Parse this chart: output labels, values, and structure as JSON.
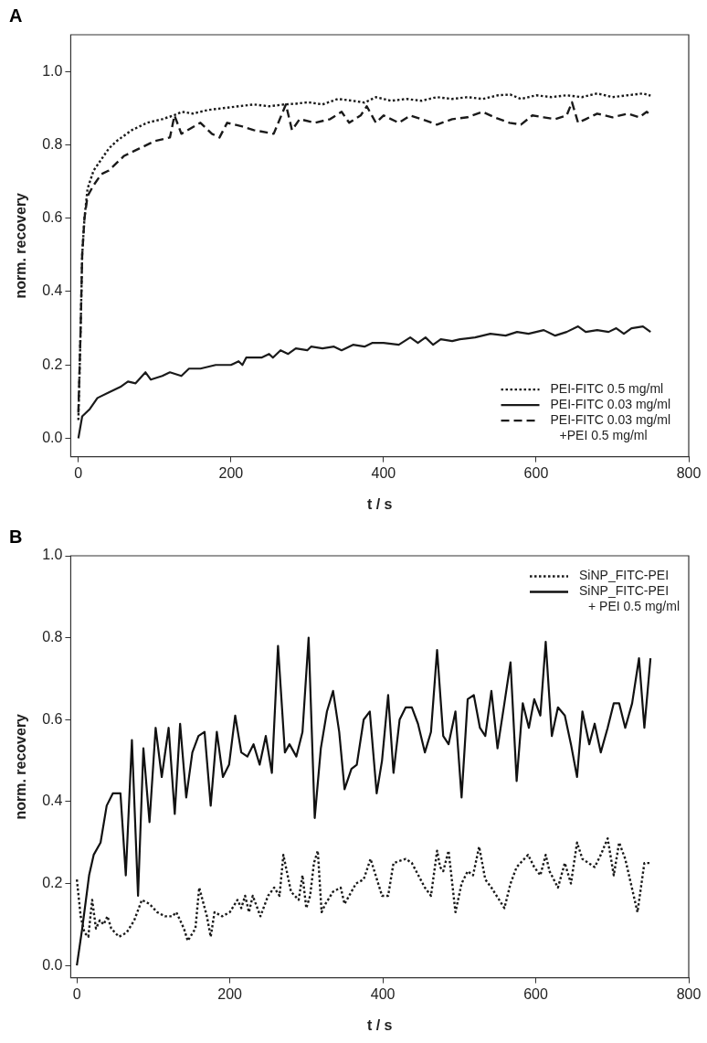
{
  "chart_data": [
    {
      "type": "line",
      "title": "A",
      "xlabel": "t / s",
      "ylabel": "norm. recovery",
      "xlim": [
        -10,
        800
      ],
      "xticks": [
        0,
        200,
        400,
        600,
        800
      ],
      "ylim": [
        -0.05,
        1.1
      ],
      "yticks": [
        {
          "value": 0,
          "label": "0.0"
        },
        {
          "value": 0.2,
          "label": "0.2"
        },
        {
          "value": 0.4,
          "label": "0.4"
        },
        {
          "value": 0.6,
          "label": "0.6"
        },
        {
          "value": 0.8,
          "label": "0.8"
        },
        {
          "value": 1,
          "label": "1.0"
        }
      ],
      "grid": false,
      "legend": "bottom right",
      "marker": "none",
      "series": [
        {
          "name": "PEI-FITC 0.5 mg/ml",
          "color": "#1a1a1a",
          "line_style": "dotted",
          "x": [
            0,
            3,
            5,
            8,
            12,
            20,
            30,
            40,
            50,
            70,
            90,
            110,
            125,
            136,
            150,
            170,
            190,
            210,
            230,
            250,
            270,
            285,
            301,
            320,
            340,
            360,
            375,
            390,
            410,
            430,
            450,
            470,
            490,
            510,
            530,
            550,
            566,
            580,
            600,
            620,
            640,
            660,
            680,
            700,
            720,
            740,
            750
          ],
          "values": [
            0.05,
            0.3,
            0.5,
            0.6,
            0.68,
            0.73,
            0.76,
            0.79,
            0.81,
            0.84,
            0.86,
            0.87,
            0.88,
            0.89,
            0.885,
            0.895,
            0.9,
            0.905,
            0.91,
            0.905,
            0.91,
            0.912,
            0.916,
            0.91,
            0.925,
            0.92,
            0.915,
            0.93,
            0.92,
            0.925,
            0.92,
            0.93,
            0.925,
            0.93,
            0.925,
            0.935,
            0.937,
            0.925,
            0.935,
            0.93,
            0.935,
            0.93,
            0.94,
            0.93,
            0.935,
            0.94,
            0.934
          ]
        },
        {
          "name": "PEI-FITC 0.03 mg/ml",
          "color": "#1a1a1a",
          "line_style": "solid",
          "x": [
            0,
            5,
            10,
            15,
            25,
            40,
            55,
            65,
            75,
            88,
            95,
            110,
            120,
            135,
            145,
            160,
            180,
            200,
            210,
            215,
            220,
            240,
            250,
            255,
            265,
            275,
            285,
            300,
            305,
            320,
            335,
            345,
            360,
            375,
            385,
            400,
            420,
            435,
            445,
            455,
            465,
            475,
            490,
            500,
            520,
            540,
            560,
            575,
            590,
            610,
            625,
            640,
            655,
            665,
            680,
            695,
            705,
            715,
            725,
            740,
            750
          ],
          "values": [
            0.0,
            0.06,
            0.07,
            0.08,
            0.11,
            0.125,
            0.14,
            0.155,
            0.15,
            0.18,
            0.16,
            0.17,
            0.18,
            0.17,
            0.19,
            0.19,
            0.2,
            0.2,
            0.21,
            0.2,
            0.22,
            0.22,
            0.23,
            0.22,
            0.24,
            0.23,
            0.245,
            0.24,
            0.25,
            0.245,
            0.25,
            0.24,
            0.255,
            0.25,
            0.26,
            0.26,
            0.255,
            0.275,
            0.26,
            0.275,
            0.255,
            0.27,
            0.265,
            0.27,
            0.275,
            0.285,
            0.28,
            0.29,
            0.285,
            0.295,
            0.28,
            0.29,
            0.305,
            0.29,
            0.295,
            0.29,
            0.3,
            0.285,
            0.3,
            0.305,
            0.29
          ]
        },
        {
          "name": "PEI-FITC 0.03 mg/ml +PEI 0.5 mg/ml",
          "color": "#1a1a1a",
          "line_style": "dashed",
          "x": [
            0,
            3,
            5,
            8,
            12,
            20,
            30,
            40,
            50,
            60,
            80,
            100,
            120,
            126,
            135,
            160,
            175,
            185,
            195,
            215,
            230,
            256,
            272,
            280,
            290,
            310,
            330,
            345,
            355,
            370,
            378,
            390,
            400,
            420,
            435,
            450,
            470,
            490,
            510,
            530,
            545,
            565,
            580,
            595,
            610,
            625,
            640,
            647,
            655,
            665,
            680,
            700,
            720,
            735,
            745,
            750
          ],
          "values": [
            0.07,
            0.3,
            0.5,
            0.6,
            0.66,
            0.69,
            0.72,
            0.73,
            0.75,
            0.77,
            0.79,
            0.81,
            0.82,
            0.88,
            0.83,
            0.86,
            0.83,
            0.82,
            0.86,
            0.85,
            0.84,
            0.83,
            0.91,
            0.84,
            0.87,
            0.86,
            0.87,
            0.89,
            0.86,
            0.88,
            0.905,
            0.86,
            0.88,
            0.86,
            0.88,
            0.87,
            0.855,
            0.87,
            0.875,
            0.89,
            0.875,
            0.86,
            0.855,
            0.88,
            0.875,
            0.87,
            0.88,
            0.916,
            0.86,
            0.87,
            0.885,
            0.875,
            0.885,
            0.875,
            0.89,
            0.88
          ]
        }
      ]
    },
    {
      "type": "line",
      "title": "B",
      "xlabel": "t / s",
      "ylabel": "norm. recovery",
      "xlim": [
        -8,
        800
      ],
      "xticks": [
        0,
        200,
        400,
        600,
        800
      ],
      "ylim": [
        -0.03,
        1.0
      ],
      "yticks": [
        {
          "value": 0,
          "label": "0.0"
        },
        {
          "value": 0.2,
          "label": "0.2"
        },
        {
          "value": 0.4,
          "label": "0.4"
        },
        {
          "value": 0.6,
          "label": "0.6"
        },
        {
          "value": 0.8,
          "label": "0.8"
        },
        {
          "value": 1,
          "label": "1.0"
        }
      ],
      "grid": false,
      "legend": "top right",
      "marker": "none",
      "series": [
        {
          "name": "SiNP_FITC-PEI",
          "color": "#1a1a1a",
          "line_style": "dotted",
          "x": [
            0,
            5,
            10,
            15,
            20,
            25,
            30,
            35,
            40,
            45,
            55,
            65,
            75,
            85,
            95,
            105,
            115,
            125,
            130,
            140,
            145,
            155,
            160,
            170,
            175,
            180,
            190,
            200,
            210,
            215,
            220,
            225,
            230,
            240,
            250,
            258,
            265,
            270,
            280,
            290,
            295,
            300,
            305,
            310,
            315,
            320,
            325,
            335,
            345,
            350,
            365,
            375,
            384,
            399,
            407,
            414,
            430,
            438,
            455,
            463,
            471,
            475,
            479,
            486,
            495,
            503,
            511,
            518,
            526,
            534,
            542,
            559,
            567,
            575,
            590,
            598,
            606,
            613,
            618,
            629,
            638,
            646,
            654,
            661,
            677,
            685,
            694,
            702,
            709,
            717,
            733,
            742,
            750
          ],
          "values": [
            0.21,
            0.12,
            0.08,
            0.07,
            0.16,
            0.09,
            0.11,
            0.1,
            0.12,
            0.09,
            0.07,
            0.08,
            0.11,
            0.16,
            0.15,
            0.13,
            0.12,
            0.12,
            0.13,
            0.09,
            0.06,
            0.09,
            0.19,
            0.12,
            0.07,
            0.13,
            0.12,
            0.13,
            0.16,
            0.14,
            0.17,
            0.13,
            0.17,
            0.12,
            0.17,
            0.19,
            0.17,
            0.27,
            0.18,
            0.16,
            0.22,
            0.14,
            0.17,
            0.25,
            0.28,
            0.13,
            0.15,
            0.18,
            0.19,
            0.15,
            0.2,
            0.21,
            0.26,
            0.17,
            0.17,
            0.25,
            0.26,
            0.25,
            0.19,
            0.17,
            0.28,
            0.24,
            0.23,
            0.28,
            0.13,
            0.2,
            0.23,
            0.22,
            0.29,
            0.21,
            0.19,
            0.14,
            0.2,
            0.24,
            0.27,
            0.24,
            0.22,
            0.27,
            0.23,
            0.19,
            0.25,
            0.2,
            0.3,
            0.26,
            0.24,
            0.27,
            0.31,
            0.22,
            0.3,
            0.26,
            0.13,
            0.25,
            0.25
          ]
        },
        {
          "name": "SiNP_FITC-PEI + PEI 0.5 mg/ml",
          "color": "#111111",
          "line_style": "solid",
          "x": [
            0,
            7,
            16,
            22,
            31,
            39,
            47,
            57,
            64,
            72,
            80,
            87,
            95,
            103,
            111,
            120,
            128,
            135,
            143,
            151,
            159,
            167,
            175,
            183,
            191,
            199,
            207,
            215,
            223,
            231,
            239,
            247,
            255,
            263,
            272,
            278,
            287,
            295,
            303,
            311,
            319,
            327,
            335,
            343,
            350,
            359,
            366,
            375,
            383,
            392,
            399,
            407,
            414,
            422,
            430,
            438,
            446,
            455,
            463,
            471,
            479,
            486,
            495,
            503,
            511,
            519,
            527,
            534,
            542,
            550,
            559,
            567,
            575,
            583,
            591,
            598,
            606,
            613,
            621,
            629,
            638,
            646,
            654,
            661,
            670,
            677,
            685,
            694,
            702,
            709,
            717,
            726,
            735,
            742,
            750
          ],
          "values": [
            0.0,
            0.09,
            0.22,
            0.27,
            0.3,
            0.39,
            0.42,
            0.42,
            0.22,
            0.55,
            0.17,
            0.53,
            0.35,
            0.58,
            0.46,
            0.58,
            0.37,
            0.59,
            0.41,
            0.52,
            0.56,
            0.57,
            0.39,
            0.57,
            0.46,
            0.49,
            0.61,
            0.52,
            0.51,
            0.54,
            0.49,
            0.56,
            0.47,
            0.78,
            0.52,
            0.54,
            0.51,
            0.57,
            0.8,
            0.36,
            0.53,
            0.62,
            0.67,
            0.57,
            0.43,
            0.48,
            0.49,
            0.6,
            0.62,
            0.42,
            0.5,
            0.66,
            0.47,
            0.6,
            0.63,
            0.63,
            0.59,
            0.52,
            0.57,
            0.77,
            0.56,
            0.54,
            0.62,
            0.41,
            0.65,
            0.66,
            0.58,
            0.56,
            0.67,
            0.53,
            0.64,
            0.74,
            0.45,
            0.64,
            0.58,
            0.65,
            0.61,
            0.79,
            0.56,
            0.63,
            0.61,
            0.54,
            0.46,
            0.62,
            0.54,
            0.59,
            0.52,
            0.58,
            0.64,
            0.64,
            0.58,
            0.64,
            0.75,
            0.58,
            0.75
          ]
        }
      ]
    }
  ]
}
